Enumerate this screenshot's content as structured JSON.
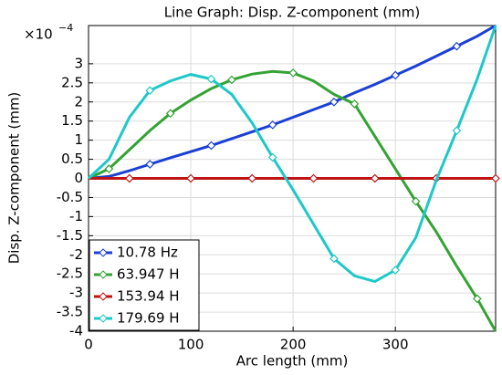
{
  "chart_data": {
    "type": "line",
    "title": "Line Graph: Disp. Z-component (mm)",
    "xlabel": "Arc length (mm)",
    "ylabel": "Disp. Z-component (mm)",
    "multiplier": {
      "base": "×10",
      "exponent": "−4"
    },
    "x": [
      0,
      20,
      40,
      60,
      80,
      100,
      120,
      140,
      160,
      180,
      200,
      220,
      240,
      260,
      280,
      300,
      320,
      340,
      360,
      380,
      398
    ],
    "series": [
      {
        "name": "10.78 Hz",
        "color": "#1a3fd6",
        "values": [
          0,
          0.05,
          0.2,
          0.37,
          0.54,
          0.7,
          0.86,
          1.04,
          1.22,
          1.4,
          1.6,
          1.8,
          2.0,
          2.24,
          2.46,
          2.7,
          2.94,
          3.2,
          3.46,
          3.72,
          4.0
        ]
      },
      {
        "name": "63.947 H",
        "color": "#34a334",
        "values": [
          0,
          0.25,
          0.75,
          1.25,
          1.7,
          2.05,
          2.35,
          2.58,
          2.73,
          2.8,
          2.76,
          2.55,
          2.2,
          1.95,
          1.1,
          0.25,
          -0.6,
          -1.4,
          -2.3,
          -3.15,
          -4.0
        ]
      },
      {
        "name": "153.94 H",
        "color": "#c01414",
        "values": [
          0,
          0,
          0,
          0,
          0,
          0,
          0,
          0,
          0,
          0,
          0,
          0,
          0,
          0,
          0,
          0,
          0,
          0,
          0,
          0,
          0
        ]
      },
      {
        "name": "179.69 H",
        "color": "#1ec8c8",
        "values": [
          0,
          0.5,
          1.6,
          2.3,
          2.55,
          2.72,
          2.6,
          2.2,
          1.45,
          0.55,
          -0.3,
          -1.2,
          -2.1,
          -2.55,
          -2.7,
          -2.4,
          -1.55,
          -0.05,
          1.25,
          2.6,
          4.0
        ]
      }
    ],
    "xlim": [
      0,
      398
    ],
    "xticks": [
      0,
      100,
      200,
      300
    ],
    "ylim": [
      -4,
      4
    ],
    "yticks": [
      -4,
      -3.5,
      -3,
      -2.5,
      -2,
      -1.5,
      -1,
      -0.5,
      0,
      0.5,
      1,
      1.5,
      2,
      2.5,
      3
    ],
    "grid": true,
    "legend": "lower left"
  }
}
